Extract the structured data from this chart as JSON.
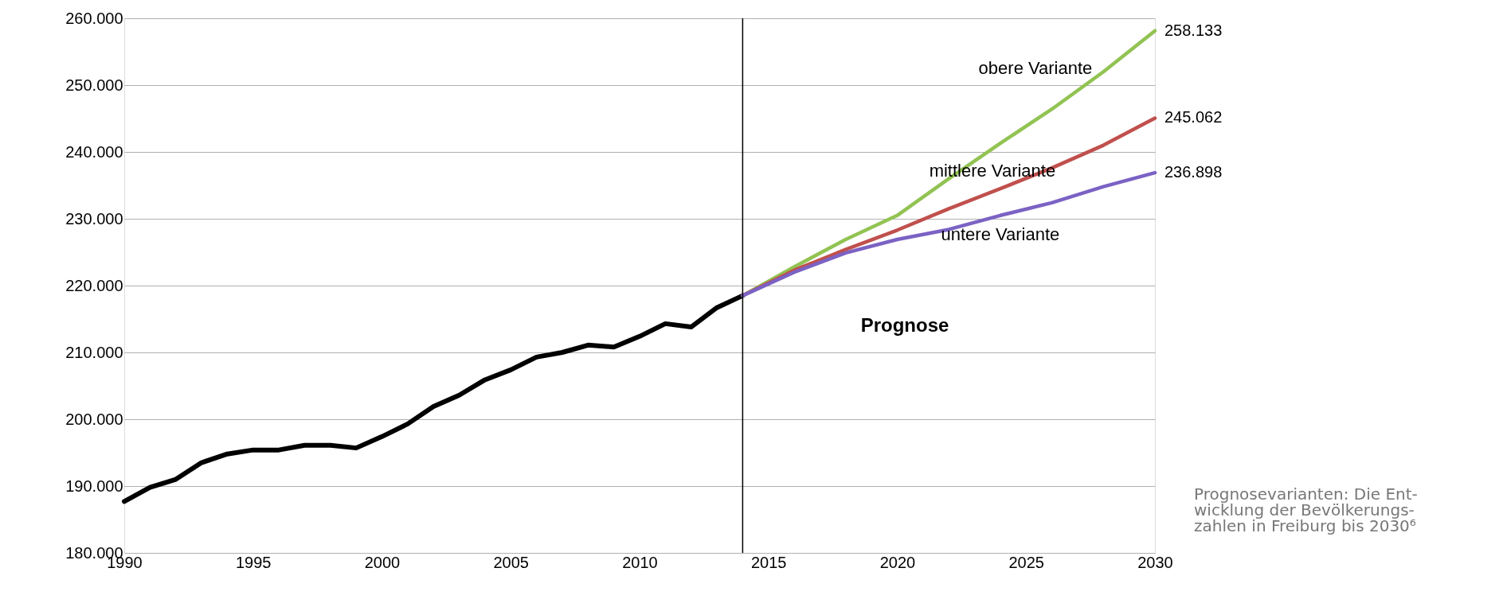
{
  "chart_data": {
    "type": "line",
    "x": [
      1990,
      1991,
      1992,
      1993,
      1994,
      1995,
      1996,
      1997,
      1998,
      1999,
      2000,
      2001,
      2002,
      2003,
      2004,
      2005,
      2006,
      2007,
      2008,
      2009,
      2010,
      2011,
      2012,
      2013,
      2014
    ],
    "series": [
      {
        "color": "#000000",
        "values": [
          187700,
          189800,
          191000,
          193500,
          194800,
          195400,
          195400,
          196100,
          196100,
          195700,
          197400,
          199300,
          201900,
          203600,
          205900,
          207400,
          209300,
          210000,
          211100,
          210800,
          212400,
          214300,
          213800,
          216700,
          218500
        ]
      },
      {
        "name": "obere Variante",
        "color": "#92c353",
        "x": [
          2014,
          2016,
          2018,
          2020,
          2022,
          2024,
          2026,
          2028,
          2030
        ],
        "values": [
          218500,
          222800,
          226900,
          230500,
          236000,
          241300,
          246400,
          252000,
          258133
        ],
        "value_labels": [
          null,
          null,
          null,
          null,
          null,
          null,
          null,
          null,
          "258.133"
        ]
      },
      {
        "name": "mittlere Variante",
        "color": "#c0504d",
        "x": [
          2014,
          2016,
          2018,
          2020,
          2022,
          2024,
          2026,
          2028,
          2030
        ],
        "values": [
          218500,
          222300,
          225400,
          228300,
          231500,
          234500,
          237600,
          241000,
          245062
        ],
        "value_labels": [
          null,
          null,
          null,
          null,
          null,
          null,
          null,
          null,
          "245.062"
        ]
      },
      {
        "name": "untere Variante",
        "color": "#7b62c4",
        "x": [
          2014,
          2016,
          2018,
          2020,
          2022,
          2024,
          2026,
          2028,
          2030
        ],
        "values": [
          218500,
          222000,
          224900,
          226900,
          228400,
          230500,
          232400,
          234800,
          236898
        ],
        "value_labels": [
          null,
          null,
          null,
          null,
          null,
          null,
          null,
          null,
          "236.898"
        ]
      }
    ],
    "xlim": [
      1990,
      2030
    ],
    "xticks": [
      1990,
      1995,
      2000,
      2005,
      2010,
      2015,
      2020,
      2025,
      2030
    ],
    "ylim": [
      180000,
      260000
    ],
    "yticks": [
      {
        "value": 180000,
        "label": "180.000"
      },
      {
        "value": 190000,
        "label": "190.000"
      },
      {
        "value": 200000,
        "label": "200.000"
      },
      {
        "value": 210000,
        "label": "210.000"
      },
      {
        "value": 220000,
        "label": "220.000"
      },
      {
        "value": 230000,
        "label": "230.000"
      },
      {
        "value": 240000,
        "label": "240.000"
      },
      {
        "value": 250000,
        "label": "250.000"
      },
      {
        "value": 260000,
        "label": "260.000"
      }
    ],
    "grid": "y",
    "legend": false,
    "marker": "none",
    "line_style": "solid",
    "ref_lines": [
      {
        "axis": "x",
        "value": 2014,
        "color": "#000000"
      }
    ],
    "annotations": [
      "Prognose",
      "Prognosevarianten: Die Ent-\nwicklung der Bevölkerungs-\nzahlen in Freiburg bis 2030⁶"
    ]
  }
}
